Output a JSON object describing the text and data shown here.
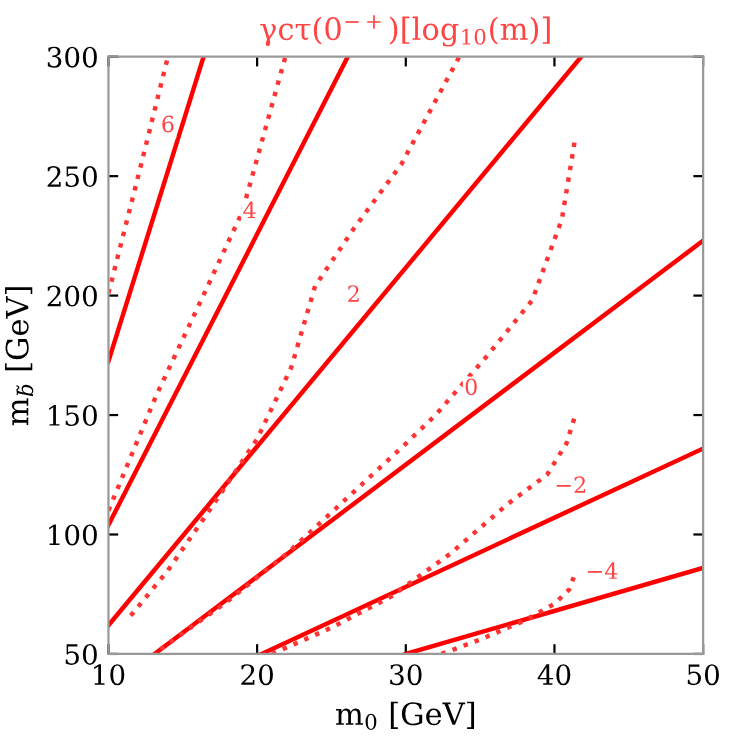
{
  "chart_data": {
    "type": "line",
    "title": "γcτ(0$^{−+}$)[log$_{10}$(m)]",
    "xlabel": "m$_{0}$ [GeV]",
    "ylabel": "m$_{b̃}$ [GeV]",
    "xlim": [
      10,
      50
    ],
    "ylim": [
      50,
      300
    ],
    "xticks": [
      10,
      20,
      30,
      40,
      50
    ],
    "yticks": [
      50,
      100,
      150,
      200,
      250,
      300
    ],
    "grid": false,
    "legend": false,
    "marker": "none",
    "series": [
      {
        "color": "#ff0000",
        "line_style": "solid",
        "x": [
          10,
          16.4
        ],
        "values": [
          172.5,
          300
        ]
      },
      {
        "color": "#ff0000",
        "line_style": "solid",
        "x": [
          10,
          26.1
        ],
        "values": [
          104,
          300
        ]
      },
      {
        "color": "#ff0000",
        "line_style": "solid",
        "x": [
          10,
          41.8
        ],
        "values": [
          62,
          300
        ]
      },
      {
        "color": "#ff0000",
        "line_style": "solid",
        "x": [
          13.1,
          50
        ],
        "values": [
          50,
          223
        ]
      },
      {
        "color": "#ff0000",
        "line_style": "solid",
        "x": [
          20.3,
          50
        ],
        "values": [
          50,
          136
        ]
      },
      {
        "color": "#ff0000",
        "line_style": "solid",
        "x": [
          30,
          50
        ],
        "values": [
          50,
          86
        ]
      },
      {
        "color": "#ff3333",
        "line_style": "dotted",
        "x": [
          10,
          12,
          14
        ],
        "values": [
          201,
          250,
          300
        ]
      },
      {
        "color": "#ff3333",
        "line_style": "dotted",
        "x": [
          10,
          11.8,
          13.2,
          16,
          19,
          21.9
        ],
        "values": [
          110,
          137,
          158,
          195,
          235,
          300
        ]
      },
      {
        "color": "#ff3333",
        "line_style": "dotted",
        "x": [
          11.5,
          14,
          17,
          20,
          22.3,
          23.9,
          26.5,
          29.7,
          33.6
        ],
        "values": [
          66,
          85,
          112,
          140,
          170,
          204,
          228,
          255,
          300
        ]
      },
      {
        "color": "#ff3333",
        "line_style": "dotted",
        "x": [
          13.5,
          18,
          22,
          26,
          30,
          32,
          35.5,
          38.5,
          40.5,
          41.4
        ],
        "values": [
          52,
          72,
          92,
          115,
          138,
          150,
          175,
          198,
          232,
          266
        ]
      },
      {
        "color": "#ff3333",
        "line_style": "dotted",
        "x": [
          21,
          25,
          29,
          33,
          36.9,
          39.5,
          40.8,
          41.4
        ],
        "values": [
          50,
          61,
          74,
          92,
          113,
          125,
          138,
          150
        ]
      },
      {
        "color": "#ff3333",
        "line_style": "dotted",
        "x": [
          32.4,
          35,
          38,
          40,
          41,
          41.4
        ],
        "values": [
          50,
          56,
          64,
          71,
          77,
          84
        ]
      }
    ],
    "annotations": [
      {
        "text": "6",
        "x": 14,
        "y": 271
      },
      {
        "text": "4",
        "x": 19.5,
        "y": 235
      },
      {
        "text": "2",
        "x": 26.5,
        "y": 200
      },
      {
        "text": "0",
        "x": 34.4,
        "y": 161
      },
      {
        "text": "−2",
        "x": 41.1,
        "y": 120
      },
      {
        "text": "−4",
        "x": 43.2,
        "y": 84
      }
    ]
  }
}
